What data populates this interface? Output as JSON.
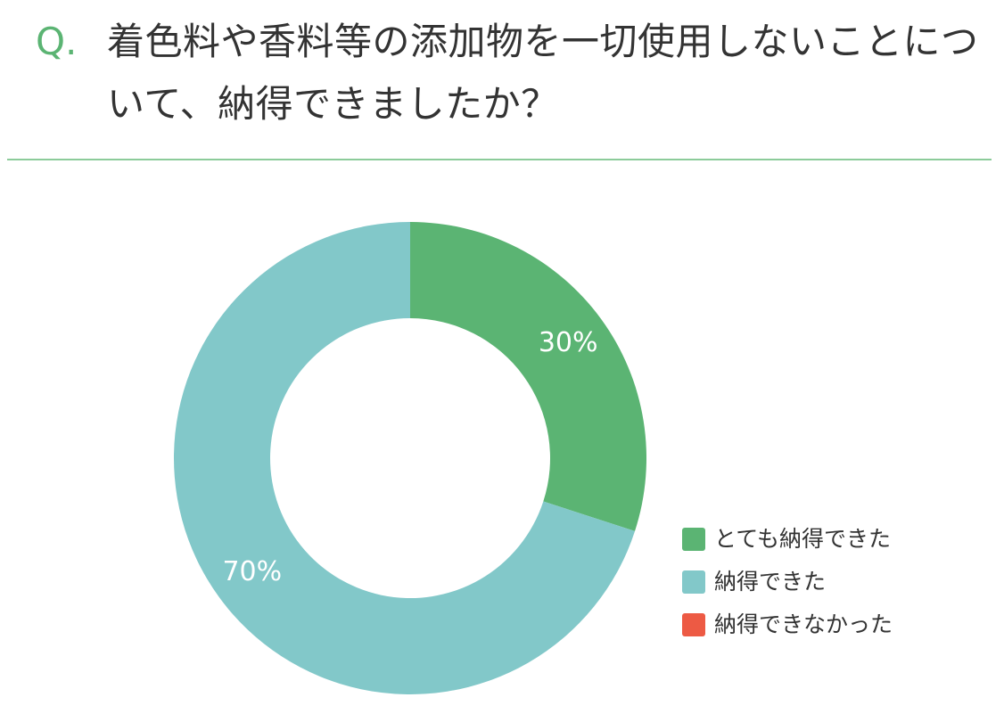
{
  "chart_data": {
    "type": "pie",
    "donut": true,
    "title_prefix": "Q.",
    "title": "着色料や香料等の添加物を一切使用しないことについて、納得できましたか？",
    "categories": [
      "とても納得できた",
      "納得できた",
      "納得できなかった"
    ],
    "values": [
      30,
      70,
      0
    ],
    "value_labels": [
      "30%",
      "70%",
      null
    ],
    "colors": [
      "#5bb473",
      "#82c8c9",
      "#ed5a44"
    ],
    "legend": "right"
  }
}
